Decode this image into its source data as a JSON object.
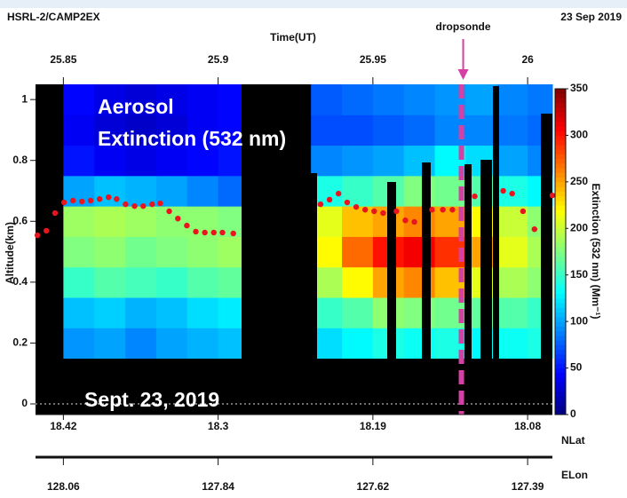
{
  "chart_data": {
    "type": "heatmap",
    "title": "HSRL-2/CAMP2EX",
    "date": "23 Sep 2019",
    "xlabel": "Time(UT)",
    "ylabel": "Altitude(km)",
    "xlim": [
      25.841,
      26.008
    ],
    "xticks": [
      25.85,
      25.9,
      25.95,
      26
    ],
    "ylim": [
      -0.035,
      1.05
    ],
    "yticks": [
      0,
      0.2,
      0.4,
      0.6,
      0.8,
      1
    ],
    "grid_zero_line": true,
    "colormap": "jet",
    "x_bins": [
      25.84,
      25.85,
      25.86,
      25.87,
      25.88,
      25.89,
      25.9,
      25.91,
      25.92,
      25.93,
      25.94,
      25.95,
      25.96,
      25.97,
      25.98,
      25.99,
      26,
      26.01
    ],
    "y_bins": [
      0.15,
      0.25,
      0.35,
      0.45,
      0.55,
      0.65,
      0.75,
      0.85,
      0.95,
      1.05
    ],
    "z": [
      [
        null,
        95,
        100,
        90,
        100,
        105,
        110,
        null,
        null,
        120,
        130,
        140,
        135,
        140,
        130,
        135,
        140
      ],
      [
        null,
        110,
        115,
        105,
        110,
        120,
        125,
        null,
        null,
        150,
        160,
        180,
        175,
        170,
        165,
        160,
        150
      ],
      [
        null,
        150,
        160,
        155,
        150,
        160,
        165,
        null,
        null,
        190,
        220,
        250,
        260,
        240,
        210,
        190,
        180
      ],
      [
        null,
        175,
        180,
        170,
        175,
        180,
        185,
        null,
        null,
        220,
        270,
        300,
        310,
        290,
        250,
        210,
        190
      ],
      [
        null,
        185,
        190,
        185,
        180,
        180,
        175,
        null,
        null,
        210,
        240,
        250,
        260,
        250,
        220,
        200,
        180
      ],
      [
        null,
        100,
        110,
        105,
        100,
        90,
        80,
        null,
        null,
        140,
        150,
        160,
        175,
        170,
        160,
        140,
        130
      ],
      [
        null,
        50,
        40,
        35,
        40,
        45,
        50,
        null,
        null,
        90,
        95,
        100,
        110,
        130,
        120,
        100,
        90
      ],
      [
        null,
        40,
        30,
        25,
        30,
        40,
        45,
        null,
        null,
        70,
        70,
        75,
        80,
        90,
        90,
        85,
        80
      ],
      [
        null,
        45,
        35,
        30,
        35,
        40,
        45,
        null,
        null,
        75,
        80,
        85,
        90,
        95,
        100,
        90,
        85
      ]
    ],
    "colorbar": {
      "label": "Extinction (532 nm) (Mm⁻¹)",
      "lim": [
        0,
        350
      ],
      "ticks": [
        0,
        50,
        100,
        150,
        200,
        250,
        300,
        350
      ]
    },
    "points": {
      "color": "#e8141e",
      "x": [
        25.8416,
        25.8445,
        25.8473,
        25.8502,
        25.8531,
        25.856,
        25.8588,
        25.8617,
        25.8646,
        25.8672,
        25.8701,
        25.873,
        25.8758,
        25.8787,
        25.8813,
        25.8842,
        25.887,
        25.8899,
        25.8928,
        25.8957,
        25.8986,
        25.9014,
        25.9049,
        25.9331,
        25.936,
        25.9389,
        25.9417,
        25.9446,
        25.9475,
        25.9504,
        25.9533,
        25.9576,
        25.9605,
        25.9634,
        25.9691,
        25.9726,
        25.9757,
        25.9829,
        25.9921,
        25.995,
        25.9985,
        26.0022,
        26.008
      ],
      "y": [
        0.554,
        0.569,
        0.627,
        0.662,
        0.668,
        0.665,
        0.668,
        0.673,
        0.679,
        0.673,
        0.656,
        0.65,
        0.65,
        0.656,
        0.659,
        0.633,
        0.609,
        0.586,
        0.566,
        0.563,
        0.563,
        0.563,
        0.56,
        0.656,
        0.671,
        0.691,
        0.662,
        0.647,
        0.638,
        0.633,
        0.627,
        0.633,
        0.603,
        0.598,
        0.638,
        0.638,
        0.638,
        0.682,
        0.7,
        0.691,
        0.633,
        0.574,
        0.685
      ]
    },
    "dropsonde": {
      "label": "dropsonde",
      "x": 25.9786,
      "color": "#d63fa4"
    },
    "annotations": [
      "Aerosol",
      "Extinction (532 nm)",
      "Sept. 23, 2019"
    ],
    "nlat": {
      "label": "NLat",
      "ticks": [
        18.42,
        18.3,
        18.19,
        18.08
      ]
    },
    "elon": {
      "label": "ELon",
      "ticks": [
        128.06,
        127.84,
        127.62,
        127.39
      ]
    }
  }
}
